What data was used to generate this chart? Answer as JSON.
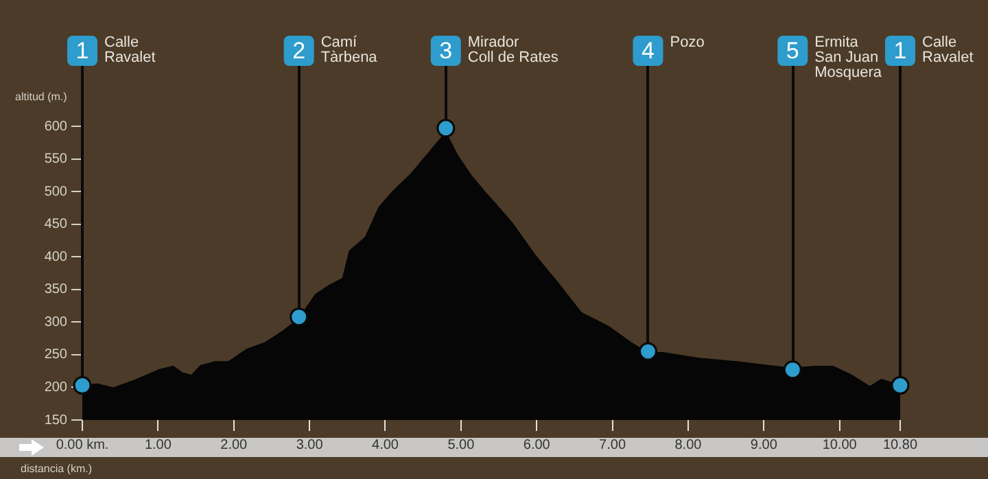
{
  "chart_data": {
    "type": "area",
    "xlabel": "distancia (km.)",
    "ylabel": "altitud (m.)",
    "xlim": [
      0,
      10.8
    ],
    "ylim": [
      150,
      600
    ],
    "xticks": [
      {
        "value": 0,
        "label": "0.00 km."
      },
      {
        "value": 1,
        "label": "1.00"
      },
      {
        "value": 2,
        "label": "2.00"
      },
      {
        "value": 3,
        "label": "3.00"
      },
      {
        "value": 4,
        "label": "4.00"
      },
      {
        "value": 5,
        "label": "5.00"
      },
      {
        "value": 6,
        "label": "6.00"
      },
      {
        "value": 7,
        "label": "7.00"
      },
      {
        "value": 8,
        "label": "8.00"
      },
      {
        "value": 9,
        "label": "9.00"
      },
      {
        "value": 10,
        "label": "10.00"
      },
      {
        "value": 10.8,
        "label": "10.80"
      }
    ],
    "yticks": [
      150,
      200,
      250,
      300,
      350,
      400,
      450,
      500,
      550,
      600
    ],
    "grid": false,
    "legend": false,
    "series": [
      {
        "color": "#060606",
        "marker": "none",
        "x": [
          0,
          0.2,
          0.41,
          0.72,
          1.02,
          1.2,
          1.32,
          1.44,
          1.56,
          1.75,
          1.93,
          2.17,
          2.41,
          2.65,
          2.86,
          3.08,
          3.26,
          3.44,
          3.53,
          3.74,
          3.92,
          4.1,
          4.35,
          4.53,
          4.71,
          4.8,
          4.95,
          5.13,
          5.31,
          5.44,
          5.68,
          5.98,
          6.28,
          6.59,
          6.95,
          7.25,
          7.47,
          7.67,
          8.16,
          8.64,
          9.07,
          9.38,
          9.67,
          9.91,
          10.15,
          10.4,
          10.55,
          10.8
        ],
        "values": [
          203,
          205,
          199,
          212,
          227,
          232,
          222,
          218,
          233,
          239,
          239,
          258,
          268,
          286,
          305,
          342,
          356,
          367,
          409,
          430,
          476,
          500,
          528,
          553,
          578,
          590,
          556,
          525,
          500,
          483,
          451,
          402,
          360,
          314,
          293,
          268,
          253,
          253,
          244,
          239,
          233,
          229,
          232,
          232,
          219,
          201,
          212,
          203
        ]
      },
      {
        "type": "scatter",
        "color": "#2e9ccc",
        "marker": "circle",
        "x": [
          0,
          2.86,
          4.8,
          7.47,
          9.38,
          10.8
        ],
        "values": [
          203,
          308,
          597,
          255,
          227,
          203
        ]
      }
    ],
    "annotations": [
      "1",
      "Calle\nRavalet",
      "2",
      "Camí\nTàrbena",
      "3",
      "Mirador\nColl de Rates",
      "4",
      "Pozo",
      "5",
      "Ermita\nSan Juan\nMosquera",
      "1",
      "Calle\nRavalet"
    ]
  }
}
